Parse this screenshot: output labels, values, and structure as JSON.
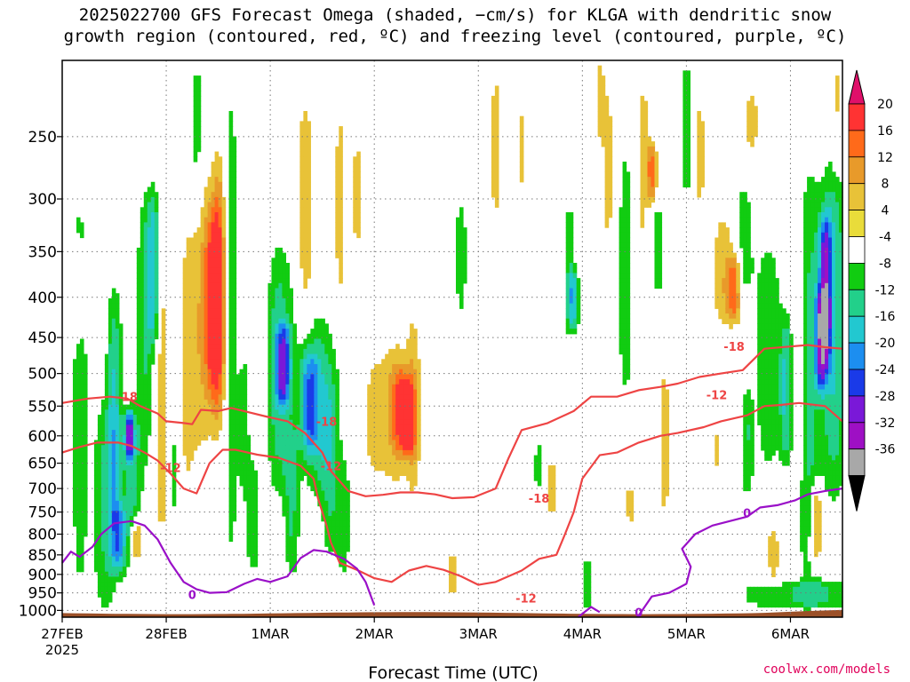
{
  "title_line1": "2025022700 GFS Forecast Omega (shaded, −cm/s) for KLGA with dendritic snow",
  "title_line2": "growth region (contoured, red, ºC) and freezing level (contoured, purple, ºC)",
  "credit": "coolwx.com/models",
  "chart_data": {
    "type": "heatmap",
    "title": "2025022700 GFS Forecast Omega (shaded, −cm/s) for KLGA with dendritic snow growth region (contoured, red, ºC) and freezing level (contoured, purple, ºC)",
    "xlabel": "Forecast Time (UTC)",
    "ylabel": "",
    "x_ticks": [
      "27FEB",
      "28FEB",
      "1MAR",
      "2MAR",
      "3MAR",
      "4MAR",
      "5MAR",
      "6MAR"
    ],
    "x_year_label": "2025",
    "x_range_hours": [
      0,
      180
    ],
    "y_scale": "log-pressure",
    "y_ticks": [
      250,
      300,
      350,
      400,
      450,
      500,
      550,
      600,
      650,
      700,
      750,
      800,
      850,
      900,
      950,
      1000
    ],
    "ylim_hpa": [
      200,
      1020
    ],
    "colorbar": {
      "labels": [
        20,
        16,
        12,
        8,
        4,
        -4,
        -8,
        -12,
        -16,
        -20,
        -24,
        -28,
        -32,
        -36
      ],
      "bins": [
        {
          "lo": 16,
          "hi": 20,
          "color": "#ff3333"
        },
        {
          "lo": 12,
          "hi": 16,
          "color": "#ff6a1a"
        },
        {
          "lo": 8,
          "hi": 12,
          "color": "#e89a2a"
        },
        {
          "lo": 4,
          "hi": 8,
          "color": "#e8c238"
        },
        {
          "lo": 0,
          "hi": 4,
          "color": "#e9dc3a"
        },
        {
          "lo": -4,
          "hi": 4,
          "color": "#ffffff"
        },
        {
          "lo": -8,
          "hi": -4,
          "color": "#11cc11"
        },
        {
          "lo": -12,
          "hi": -8,
          "color": "#22d08a"
        },
        {
          "lo": -16,
          "hi": -12,
          "color": "#22c8d0"
        },
        {
          "lo": -20,
          "hi": -16,
          "color": "#1c8ef0"
        },
        {
          "lo": -24,
          "hi": -20,
          "color": "#1a3ae8"
        },
        {
          "lo": -28,
          "hi": -24,
          "color": "#7a18d8"
        },
        {
          "lo": -32,
          "hi": -28,
          "color": "#9e10c4"
        },
        {
          "lo": -36,
          "hi": -32,
          "color": "#a8a8a8"
        }
      ],
      "top_arrow_color": "#e0106a",
      "bottom_arrow_color": "#000000"
    },
    "ground_color": "#9b5028",
    "contour_colors": {
      "dgz": "#ee4444",
      "freezing": "#9a10c8"
    },
    "series": [
      {
        "name": "-18",
        "kind": "dgz",
        "points": [
          [
            0,
            545
          ],
          [
            6,
            538
          ],
          [
            11,
            535
          ],
          [
            15,
            538
          ],
          [
            18,
            550
          ],
          [
            22,
            562
          ],
          [
            24,
            575
          ],
          [
            28,
            578
          ],
          [
            30,
            580
          ],
          [
            32,
            556
          ],
          [
            36,
            558
          ],
          [
            39,
            553
          ],
          [
            43,
            560
          ],
          [
            47,
            567
          ],
          [
            52,
            575
          ],
          [
            56,
            595
          ],
          [
            60,
            630
          ],
          [
            62,
            665
          ],
          [
            66,
            705
          ],
          [
            70,
            716
          ],
          [
            74,
            713
          ],
          [
            78,
            708
          ],
          [
            82,
            708
          ],
          [
            86,
            712
          ],
          [
            90,
            720
          ],
          [
            95,
            718
          ],
          [
            100,
            700
          ],
          [
            103,
            640
          ],
          [
            106,
            590
          ],
          [
            112,
            578
          ],
          [
            118,
            558
          ],
          [
            122,
            535
          ],
          [
            128,
            535
          ],
          [
            133,
            525
          ],
          [
            138,
            520
          ],
          [
            142,
            515
          ],
          [
            147,
            505
          ],
          [
            152,
            500
          ],
          [
            157,
            495
          ],
          [
            162,
            465
          ],
          [
            168,
            462
          ],
          [
            172,
            460
          ],
          [
            176,
            463
          ],
          [
            180,
            465
          ]
        ]
      },
      {
        "name": "-12",
        "kind": "dgz",
        "points": [
          [
            0,
            630
          ],
          [
            4,
            620
          ],
          [
            8,
            612
          ],
          [
            13,
            612
          ],
          [
            16,
            618
          ],
          [
            19,
            630
          ],
          [
            22,
            645
          ],
          [
            25,
            670
          ],
          [
            28,
            700
          ],
          [
            31,
            710
          ],
          [
            34,
            650
          ],
          [
            37,
            625
          ],
          [
            40,
            625
          ],
          [
            45,
            634
          ],
          [
            50,
            640
          ],
          [
            55,
            655
          ],
          [
            58,
            680
          ],
          [
            59,
            720
          ],
          [
            61,
            780
          ],
          [
            62,
            820
          ],
          [
            64,
            870
          ],
          [
            68,
            888
          ],
          [
            72,
            910
          ],
          [
            76,
            920
          ],
          [
            80,
            890
          ],
          [
            84,
            878
          ],
          [
            88,
            888
          ],
          [
            92,
            905
          ],
          [
            96,
            928
          ],
          [
            100,
            920
          ],
          [
            106,
            890
          ],
          [
            110,
            860
          ],
          [
            114,
            850
          ],
          [
            116,
            800
          ],
          [
            118,
            750
          ],
          [
            120,
            680
          ],
          [
            124,
            635
          ],
          [
            128,
            630
          ],
          [
            133,
            612
          ],
          [
            138,
            600
          ],
          [
            142,
            595
          ],
          [
            148,
            585
          ],
          [
            152,
            575
          ],
          [
            158,
            565
          ],
          [
            162,
            550
          ],
          [
            166,
            548
          ],
          [
            170,
            545
          ],
          [
            176,
            550
          ],
          [
            180,
            575
          ]
        ]
      },
      {
        "name": "0",
        "kind": "freezing",
        "points": [
          [
            0,
            870
          ],
          [
            2,
            842
          ],
          [
            4,
            855
          ],
          [
            7,
            830
          ],
          [
            9,
            800
          ],
          [
            12,
            775
          ],
          [
            16,
            770
          ],
          [
            19,
            780
          ],
          [
            22,
            812
          ],
          [
            25,
            870
          ],
          [
            28,
            920
          ],
          [
            31,
            940
          ],
          [
            34,
            950
          ],
          [
            38,
            948
          ],
          [
            42,
            925
          ],
          [
            45,
            912
          ],
          [
            48,
            920
          ],
          [
            52,
            905
          ],
          [
            55,
            858
          ],
          [
            58,
            838
          ],
          [
            61,
            842
          ],
          [
            65,
            860
          ],
          [
            68,
            885
          ],
          [
            70,
            920
          ],
          [
            72,
            985
          ]
        ]
      },
      {
        "name": "0",
        "kind": "freezing",
        "points": [
          [
            119,
            1020
          ],
          [
            122,
            990
          ],
          [
            124,
            1005
          ]
        ]
      },
      {
        "name": "0",
        "kind": "freezing",
        "points": [
          [
            133,
            1015
          ],
          [
            136,
            960
          ],
          [
            140,
            950
          ],
          [
            144,
            925
          ],
          [
            145,
            880
          ],
          [
            143,
            835
          ],
          [
            146,
            800
          ],
          [
            150,
            780
          ],
          [
            154,
            770
          ],
          [
            158,
            760
          ],
          [
            161,
            740
          ],
          [
            165,
            735
          ],
          [
            169,
            725
          ],
          [
            172,
            712
          ],
          [
            176,
            705
          ],
          [
            180,
            700
          ]
        ]
      }
    ],
    "contour_labels": [
      {
        "text": "-18",
        "x": 15,
        "p": 535
      },
      {
        "text": "-12",
        "x": 25,
        "p": 658
      },
      {
        "text": "-18",
        "x": 61,
        "p": 575
      },
      {
        "text": "-12",
        "x": 62,
        "p": 655
      },
      {
        "text": "-18",
        "x": 110,
        "p": 720
      },
      {
        "text": "-12",
        "x": 107,
        "p": 965
      },
      {
        "text": "-18",
        "x": 155,
        "p": 462
      },
      {
        "text": "-12",
        "x": 151,
        "p": 532
      },
      {
        "text": "0",
        "x": 30,
        "p": 955
      },
      {
        "text": "0",
        "x": 133,
        "p": 1005
      },
      {
        "text": "0",
        "x": 158,
        "p": 752
      }
    ],
    "omega_features": [
      {
        "t": 4,
        "p0": 280,
        "p1": 1000,
        "w": 1.5,
        "v": -6
      },
      {
        "t": 3,
        "p0": 350,
        "p1": 450,
        "w": 1.2,
        "v": 6
      },
      {
        "t": 10,
        "p0": 550,
        "p1": 1000,
        "w": 2.0,
        "v": -8
      },
      {
        "t": 12,
        "p0": 400,
        "p1": 800,
        "w": 1.2,
        "v": -12
      },
      {
        "t": 13,
        "p0": 750,
        "p1": 880,
        "w": 1.2,
        "v": -14
      },
      {
        "t": 16,
        "p0": 560,
        "p1": 850,
        "w": 1.5,
        "v": -10
      },
      {
        "t": 15.5,
        "p0": 570,
        "p1": 630,
        "w": 0.7,
        "v": -20
      },
      {
        "t": 17,
        "p0": 770,
        "p1": 850,
        "w": 1.0,
        "v": 12
      },
      {
        "t": 19,
        "p0": 300,
        "p1": 650,
        "w": 1.3,
        "v": -8
      },
      {
        "t": 21,
        "p0": 300,
        "p1": 460,
        "w": 1.0,
        "v": -14
      },
      {
        "t": 23,
        "p0": 350,
        "p1": 850,
        "w": 1.3,
        "v": 6
      },
      {
        "t": 26,
        "p0": 320,
        "p1": 800,
        "w": 1.2,
        "v": -8
      },
      {
        "t": 28,
        "p0": 350,
        "p1": 700,
        "w": 2.0,
        "v": 6
      },
      {
        "t": 33,
        "p0": 280,
        "p1": 620,
        "w": 3.0,
        "v": 7
      },
      {
        "t": 35,
        "p0": 320,
        "p1": 520,
        "w": 1.4,
        "v": 14
      },
      {
        "t": 36,
        "p0": 270,
        "p1": 560,
        "w": 1.0,
        "v": 10
      },
      {
        "t": 31,
        "p0": 200,
        "p1": 320,
        "w": 1.0,
        "v": -6
      },
      {
        "t": 39,
        "p0": 200,
        "p1": 950,
        "w": 1.2,
        "v": -6
      },
      {
        "t": 42,
        "p0": 480,
        "p1": 700,
        "w": 1.0,
        "v": -6
      },
      {
        "t": 44,
        "p0": 650,
        "p1": 880,
        "w": 1.2,
        "v": -8
      },
      {
        "t": 46,
        "p0": 300,
        "p1": 750,
        "w": 1.2,
        "v": 5
      },
      {
        "t": 50,
        "p0": 350,
        "p1": 700,
        "w": 2.5,
        "v": -10
      },
      {
        "t": 51,
        "p0": 440,
        "p1": 540,
        "w": 1.2,
        "v": -18
      },
      {
        "t": 53,
        "p0": 600,
        "p1": 900,
        "w": 1.2,
        "v": -8
      },
      {
        "t": 56,
        "p0": 220,
        "p1": 420,
        "w": 1.5,
        "v": 6
      },
      {
        "t": 57,
        "p0": 480,
        "p1": 620,
        "w": 1.5,
        "v": -14
      },
      {
        "t": 59,
        "p0": 430,
        "p1": 700,
        "w": 2.5,
        "v": -10
      },
      {
        "t": 62,
        "p0": 500,
        "p1": 850,
        "w": 1.5,
        "v": -8
      },
      {
        "t": 64,
        "p0": 220,
        "p1": 420,
        "w": 1.0,
        "v": 5
      },
      {
        "t": 65,
        "p0": 650,
        "p1": 900,
        "w": 1.0,
        "v": -6
      },
      {
        "t": 68,
        "p0": 250,
        "p1": 350,
        "w": 1.2,
        "v": 5
      },
      {
        "t": 72,
        "p0": 500,
        "p1": 650,
        "w": 1.5,
        "v": 5
      },
      {
        "t": 77,
        "p0": 450,
        "p1": 700,
        "w": 3.5,
        "v": 6
      },
      {
        "t": 78,
        "p0": 500,
        "p1": 620,
        "w": 1.5,
        "v": 12
      },
      {
        "t": 80,
        "p0": 520,
        "p1": 620,
        "w": 1.0,
        "v": 15
      },
      {
        "t": 81,
        "p0": 420,
        "p1": 700,
        "w": 1.0,
        "v": 5
      },
      {
        "t": 90,
        "p0": 850,
        "p1": 950,
        "w": 1.0,
        "v": 5
      },
      {
        "t": 92,
        "p0": 300,
        "p1": 420,
        "w": 1.0,
        "v": -6
      },
      {
        "t": 100,
        "p0": 200,
        "p1": 330,
        "w": 1.2,
        "v": 5
      },
      {
        "t": 106,
        "p0": 230,
        "p1": 290,
        "w": 1.0,
        "v": 5
      },
      {
        "t": 110,
        "p0": 620,
        "p1": 700,
        "w": 1.0,
        "v": -6
      },
      {
        "t": 113,
        "p0": 640,
        "p1": 760,
        "w": 1.5,
        "v": 5
      },
      {
        "t": 117,
        "p0": 310,
        "p1": 440,
        "w": 1.0,
        "v": -8
      },
      {
        "t": 118,
        "p0": 380,
        "p1": 430,
        "w": 0.8,
        "v": -12
      },
      {
        "t": 121,
        "p0": 880,
        "p1": 980,
        "w": 0.8,
        "v": -8
      },
      {
        "t": 124,
        "p0": 200,
        "p1": 250,
        "w": 1.0,
        "v": 5
      },
      {
        "t": 126,
        "p0": 220,
        "p1": 350,
        "w": 1.2,
        "v": 5
      },
      {
        "t": 130,
        "p0": 250,
        "p1": 550,
        "w": 1.5,
        "v": -6
      },
      {
        "t": 131,
        "p0": 700,
        "p1": 770,
        "w": 1.0,
        "v": 5
      },
      {
        "t": 134,
        "p0": 200,
        "p1": 400,
        "w": 1.5,
        "v": 5
      },
      {
        "t": 136,
        "p0": 260,
        "p1": 300,
        "w": 0.8,
        "v": 12
      },
      {
        "t": 137,
        "p0": 300,
        "p1": 400,
        "w": 1.5,
        "v": -6
      },
      {
        "t": 139,
        "p0": 470,
        "p1": 800,
        "w": 1.0,
        "v": 5
      },
      {
        "t": 144,
        "p0": 200,
        "p1": 300,
        "w": 1.0,
        "v": -6
      },
      {
        "t": 147,
        "p0": 230,
        "p1": 300,
        "w": 1.0,
        "v": 6
      },
      {
        "t": 151,
        "p0": 600,
        "p1": 650,
        "w": 0.8,
        "v": 5
      },
      {
        "t": 153,
        "p0": 320,
        "p1": 430,
        "w": 2.0,
        "v": 8
      },
      {
        "t": 155,
        "p0": 360,
        "p1": 420,
        "w": 1.0,
        "v": 12
      },
      {
        "t": 157,
        "p0": 290,
        "p1": 400,
        "w": 2.0,
        "v": -6
      },
      {
        "t": 158,
        "p0": 530,
        "p1": 700,
        "w": 1.0,
        "v": -8
      },
      {
        "t": 159,
        "p0": 220,
        "p1": 260,
        "w": 1.5,
        "v": 5
      },
      {
        "t": 163,
        "p0": 350,
        "p1": 650,
        "w": 2.0,
        "v": -8
      },
      {
        "t": 164,
        "p0": 790,
        "p1": 900,
        "w": 1.0,
        "v": 6
      },
      {
        "t": 167,
        "p0": 430,
        "p1": 640,
        "w": 1.0,
        "v": -12
      },
      {
        "t": 170,
        "p0": 300,
        "p1": 750,
        "w": 1.5,
        "v": 5
      },
      {
        "t": 172,
        "p0": 280,
        "p1": 900,
        "w": 2.0,
        "v": -10
      },
      {
        "t": 174,
        "p0": 700,
        "p1": 850,
        "w": 1.0,
        "v": 12
      },
      {
        "t": 175,
        "p0": 400,
        "p1": 520,
        "w": 1.0,
        "v": -18
      },
      {
        "t": 176,
        "p0": 320,
        "p1": 480,
        "w": 1.0,
        "v": -22
      },
      {
        "t": 178,
        "p0": 270,
        "p1": 700,
        "w": 2.0,
        "v": -12
      },
      {
        "t": 179,
        "p0": 200,
        "p1": 280,
        "w": 1.0,
        "v": 5
      },
      {
        "t": 165,
        "p0": 940,
        "p1": 975,
        "w": 8.0,
        "v": -6
      },
      {
        "t": 176,
        "p0": 930,
        "p1": 975,
        "w": 5.0,
        "v": -6
      }
    ]
  }
}
